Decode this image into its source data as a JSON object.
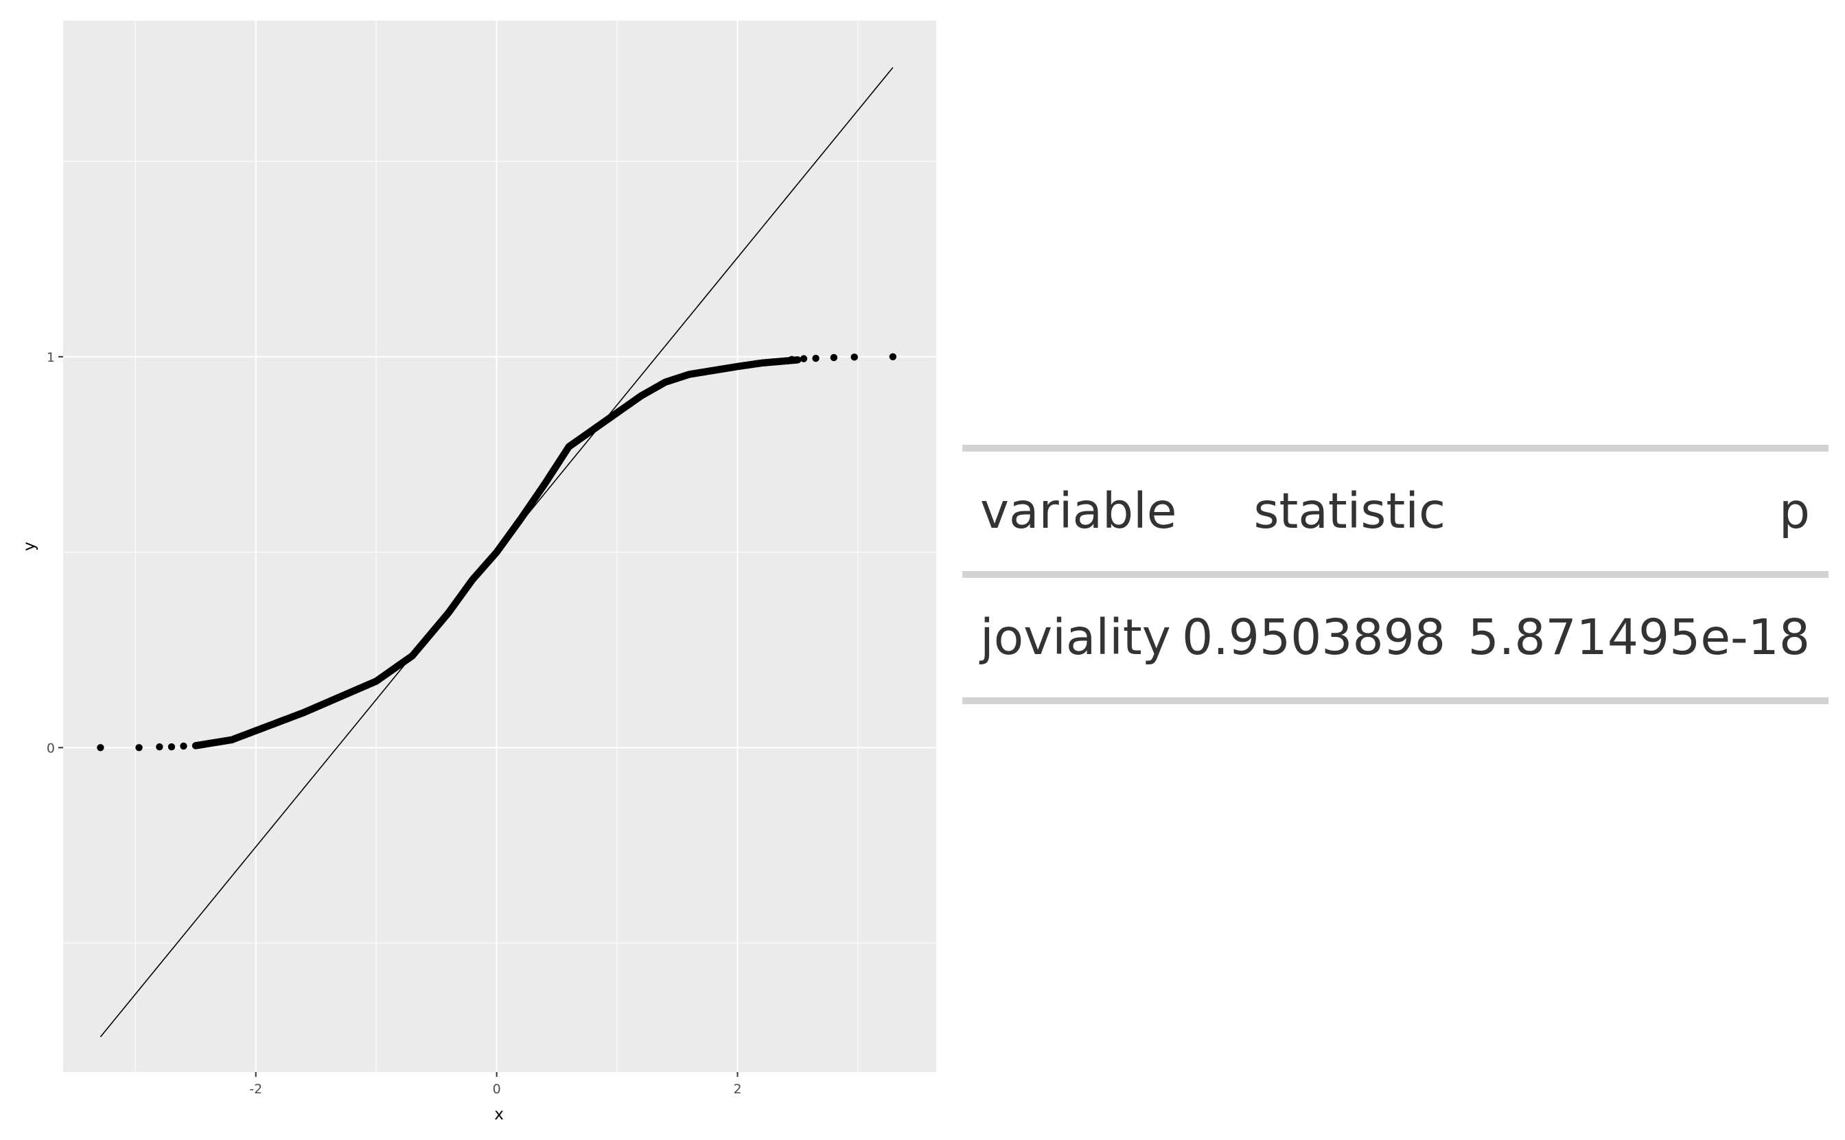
{
  "chart_data": {
    "type": "scatter",
    "title": "",
    "xlabel": "x",
    "ylabel": "y",
    "xlim": [
      -3.6,
      3.65
    ],
    "ylim": [
      -0.83,
      1.86
    ],
    "x_ticks": [
      -2,
      0,
      2
    ],
    "y_ticks": [
      0,
      1
    ],
    "x_tick_labels": [
      "-2",
      "0",
      "2"
    ],
    "y_tick_labels": [
      "0",
      "1"
    ],
    "grid": true,
    "background": "#ebebeb",
    "grid_color": "#ffffff",
    "point_color": "#000000",
    "line_color": "#000000",
    "reference_line": {
      "x": [
        -3.29,
        3.29
      ],
      "y": [
        -0.74,
        1.74
      ]
    },
    "quantile_curve": {
      "x": [
        -2.5,
        -2.2,
        -1.9,
        -1.6,
        -1.3,
        -1.0,
        -0.7,
        -0.4,
        -0.2,
        0.0,
        0.2,
        0.4,
        0.6,
        0.9,
        1.2,
        1.4,
        1.6,
        1.8,
        2.0,
        2.2,
        2.5
      ],
      "y": [
        0.005,
        0.02,
        0.055,
        0.09,
        0.13,
        0.17,
        0.235,
        0.345,
        0.43,
        0.5,
        0.585,
        0.675,
        0.77,
        0.835,
        0.9,
        0.935,
        0.955,
        0.965,
        0.975,
        0.984,
        0.992
      ]
    },
    "tail_points": {
      "x": [
        -3.29,
        -2.97,
        -2.8,
        -2.7,
        -2.6,
        2.45,
        2.55,
        2.65,
        2.8,
        2.97,
        3.29
      ],
      "y": [
        0.0,
        0.0,
        0.002,
        0.002,
        0.004,
        0.993,
        0.995,
        0.996,
        0.998,
        0.999,
        1.0
      ]
    }
  },
  "stats_table": {
    "headers": [
      "variable",
      "statistic",
      "p"
    ],
    "row": [
      "joviality",
      "0.9503898",
      "5.871495e-18"
    ]
  }
}
